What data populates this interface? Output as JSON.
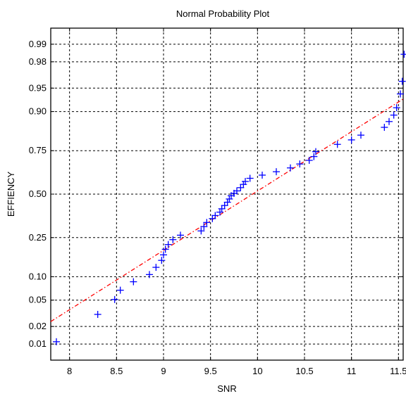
{
  "chart_data": {
    "type": "scatter",
    "title": "Normal Probability Plot",
    "xlabel": "SNR",
    "ylabel": "EFFIENCY",
    "grid": true,
    "xlim": [
      7.8,
      11.55
    ],
    "x_ticks": [
      8,
      8.5,
      9,
      9.5,
      10,
      10.5,
      11,
      11.5
    ],
    "x_tick_labels": [
      "8",
      "8.5",
      "9",
      "9.5",
      "10",
      "10.5",
      "11",
      "11.5"
    ],
    "y_ticks": [
      0.01,
      0.02,
      0.05,
      0.1,
      0.25,
      0.5,
      0.75,
      0.9,
      0.95,
      0.98,
      0.99
    ],
    "y_tick_labels": [
      "0.01",
      "0.02",
      "0.05",
      "0.10",
      "0.25",
      "0.50",
      "0.75",
      "0.90",
      "0.95",
      "0.98",
      "0.99"
    ],
    "y_scale": "normal-probability",
    "colors": {
      "points": "#0000ff",
      "reference_line": "#ff0000",
      "grid": "#000000"
    },
    "series": [
      {
        "kind": "points",
        "marker": "+",
        "x": [
          7.86,
          8.3,
          8.48,
          8.54,
          8.68,
          8.85,
          8.92,
          8.98,
          9.0,
          9.02,
          9.05,
          9.1,
          9.18,
          9.4,
          9.43,
          9.46,
          9.52,
          9.55,
          9.6,
          9.62,
          9.65,
          9.68,
          9.7,
          9.72,
          9.75,
          9.78,
          9.82,
          9.85,
          9.87,
          9.92,
          10.05,
          10.2,
          10.35,
          10.45,
          10.55,
          10.6,
          10.62,
          10.85,
          11.0,
          11.1,
          11.35,
          11.4,
          11.45,
          11.48,
          11.52,
          11.54,
          11.56
        ],
        "y": [
          0.011,
          0.031,
          0.051,
          0.068,
          0.087,
          0.106,
          0.128,
          0.152,
          0.173,
          0.196,
          0.217,
          0.24,
          0.262,
          0.284,
          0.307,
          0.33,
          0.352,
          0.37,
          0.39,
          0.41,
          0.43,
          0.45,
          0.47,
          0.49,
          0.505,
          0.52,
          0.54,
          0.56,
          0.578,
          0.597,
          0.616,
          0.636,
          0.658,
          0.68,
          0.7,
          0.72,
          0.745,
          0.78,
          0.8,
          0.82,
          0.85,
          0.87,
          0.89,
          0.91,
          0.94,
          0.96,
          0.985
        ]
      },
      {
        "kind": "reference-line",
        "style": "dash-dot",
        "x": [
          7.8,
          11.55
        ],
        "y": [
          0.024,
          0.93
        ]
      }
    ]
  }
}
